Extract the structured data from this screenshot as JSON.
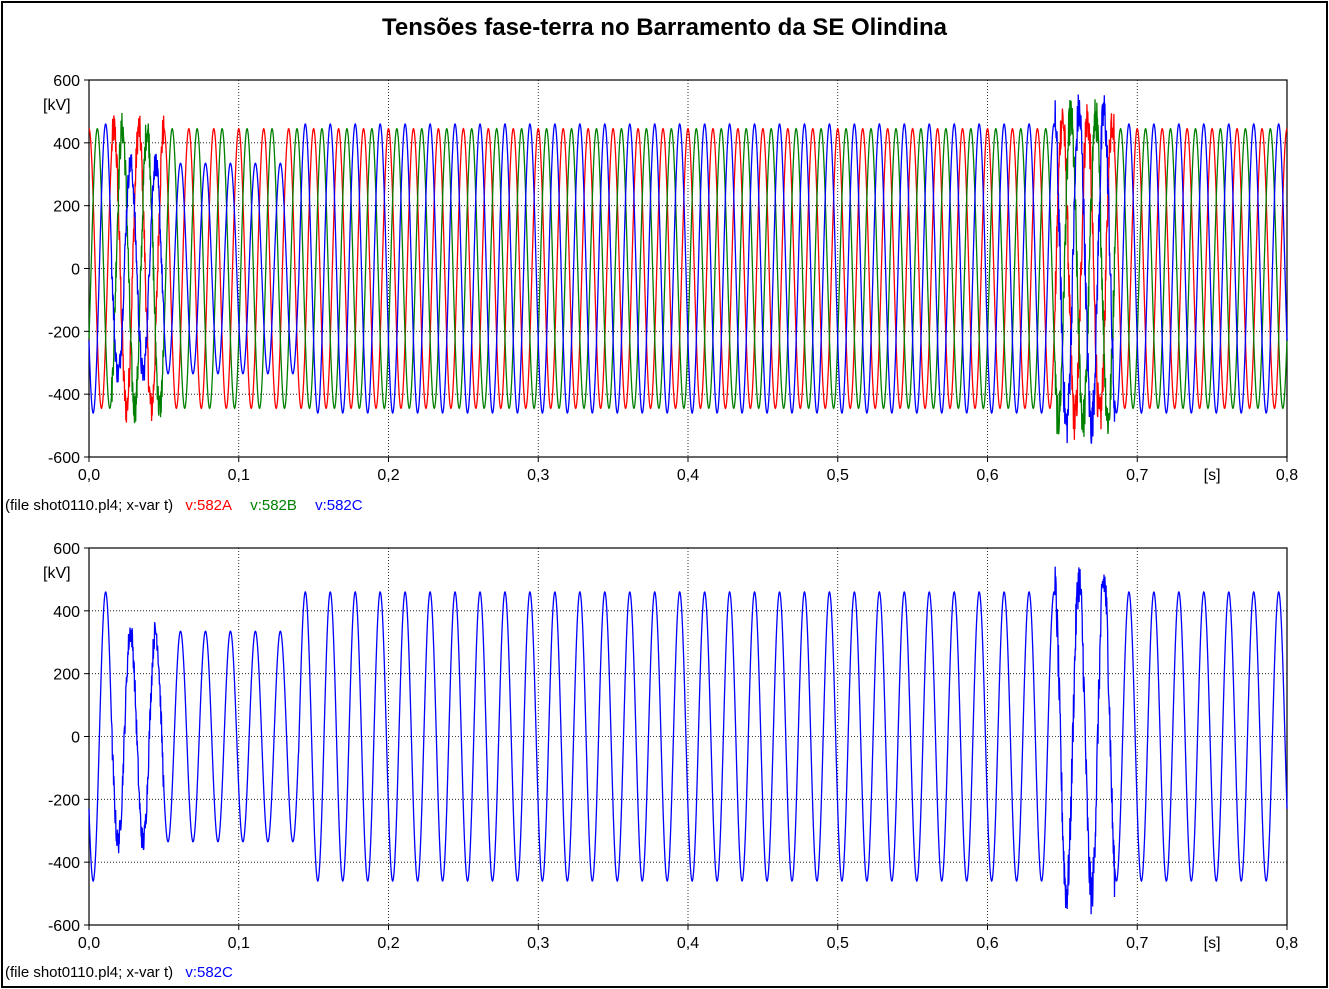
{
  "title": "Tensões fase-terra no Barramento da SE Olindina",
  "colors": {
    "A": "#ff0000",
    "B": "#008000",
    "C": "#0000ff"
  },
  "chart_data": [
    {
      "type": "line",
      "title": "Tensões fase-terra no Barramento da SE Olindina",
      "ylabel": "[kV]",
      "xlabel": "[s]",
      "xlim": [
        0,
        0.8
      ],
      "ylim": [
        -600,
        600
      ],
      "x_ticks": [
        "0,0",
        "0,1",
        "0,2",
        "0,3",
        "0,4",
        "0,5",
        "0,6",
        "0,7",
        "0,8"
      ],
      "y_ticks": [
        "600",
        "400",
        "200",
        "0",
        "-200",
        "-400",
        "-600"
      ],
      "grid": true,
      "legend_source": "(file shot0110.pl4; x-var t)",
      "frequency_hz": 60,
      "series": [
        {
          "name": "v:582A",
          "color": "#ff0000",
          "phase_deg": 90,
          "amplitude_kv": 445
        },
        {
          "name": "v:582B",
          "color": "#008000",
          "phase_deg": -30,
          "amplitude_kv": 445
        },
        {
          "name": "v:582C",
          "color": "#0000ff",
          "phase_deg": 210,
          "amplitude_kv": 460
        }
      ]
    },
    {
      "type": "line",
      "ylabel": "[kV]",
      "xlabel": "[s]",
      "xlim": [
        0,
        0.8
      ],
      "ylim": [
        -600,
        600
      ],
      "x_ticks": [
        "0,0",
        "0,1",
        "0,2",
        "0,3",
        "0,4",
        "0,5",
        "0,6",
        "0,7",
        "0,8"
      ],
      "y_ticks": [
        "600",
        "400",
        "200",
        "0",
        "-200",
        "-400",
        "-600"
      ],
      "grid": true,
      "legend_source": "(file shot0110.pl4; x-var t)",
      "frequency_hz": 60,
      "series": [
        {
          "name": "v:582C",
          "color": "#0000ff",
          "phase_deg": 210,
          "amplitude_kv": 460
        }
      ]
    }
  ],
  "legends": {
    "top": {
      "source": "(file shot0110.pl4; x-var t)",
      "a": "v:582A",
      "b": "v:582B",
      "c": "v:582C"
    },
    "bottom": {
      "source": "(file shot0110.pl4; x-var t)",
      "c": "v:582C"
    }
  }
}
